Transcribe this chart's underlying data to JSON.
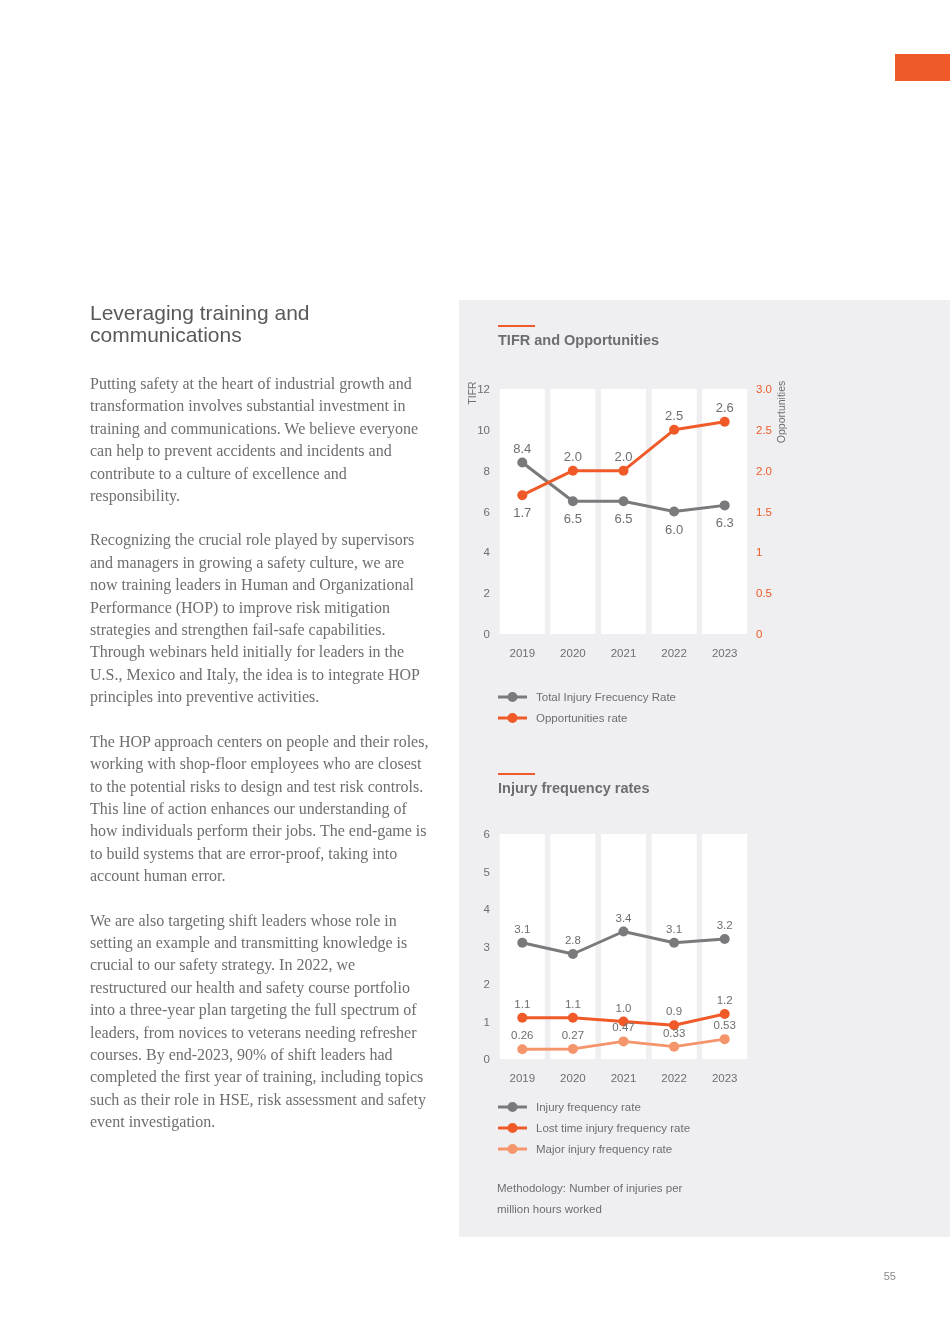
{
  "chart_data": [
    {
      "type": "other",
      "title": "Leveraging training and communications",
      "annotations": [
        "Putting safety at the heart of industrial growth and transformation involves substantial investment in training and communications. We believe everyone can help to prevent accidents and incidents and contribute to a culture of excellence and responsibility.",
        "Recognizing the crucial role played by supervisors and managers in growing a safety culture, we are now training leaders in Human and Organizational Performance (HOP) to improve risk mitigation strategies and strengthen fail-safe capabilities. Through webinars held initially for leaders in the U.S., Mexico and Italy, the idea is to integrate HOP principles into preventive activities.",
        "The HOP approach centers on people and their roles, working with shop-floor employees who are closest to the potential risks to design and test risk controls. This line of action enhances our understanding of how individuals perform their jobs. The end-game is to build systems that are error-proof, taking into account human error.",
        "We are also targeting shift leaders whose role in setting an example and transmitting knowledge is crucial to our safety strategy. In 2022, we restructured our health and safety course portfolio into a three-year plan targeting the full spectrum of leaders, from novices to veterans needing refresher courses. By end-2023, 90% of shift leaders had completed the first year of training, including topics such as their role in HSE, risk assessment and safety event investigation.",
        "55"
      ]
    },
    {
      "type": "line",
      "title": "TIFR and Opportunities",
      "categories": [
        "2019",
        "2020",
        "2021",
        "2022",
        "2023"
      ],
      "ylabel": "TIFR",
      "y2label": "Opportunities",
      "ylim": [
        0,
        12
      ],
      "yticks": [
        0,
        2,
        4,
        6,
        8,
        10,
        12
      ],
      "y2lim": [
        0,
        3
      ],
      "y2ticks": [
        0,
        {
          "value": 0.5,
          "label": "0.5"
        },
        1,
        {
          "value": 1.5,
          "label": "1.5"
        },
        {
          "value": 2,
          "label": "2.0"
        },
        {
          "value": 2.5,
          "label": "2.5"
        },
        {
          "value": 3,
          "label": "3.0"
        }
      ],
      "series": [
        {
          "name": "Total Injury Frecuency Rate",
          "color": "#7a7a7c",
          "values": [
            8.4,
            6.5,
            6.5,
            6.0,
            6.3
          ],
          "value_labels": [
            "8.4",
            "6.5",
            "6.5",
            "6.0",
            "6.3"
          ]
        },
        {
          "name": "Opportunities rate",
          "color": "#f05a28",
          "axis": "y2",
          "values": [
            1.7,
            2.0,
            2.0,
            2.5,
            2.6
          ],
          "value_labels": [
            "1.7",
            "2.0",
            "2.0",
            "2.5",
            "2.6"
          ]
        }
      ],
      "bands": [
        {
          "axis": "x",
          "from": "2019",
          "to": "2019",
          "color": "#ffffff"
        },
        {
          "axis": "x",
          "from": "2020",
          "to": "2020",
          "color": "#ffffff"
        },
        {
          "axis": "x",
          "from": "2021",
          "to": "2021",
          "color": "#ffffff"
        },
        {
          "axis": "x",
          "from": "2022",
          "to": "2022",
          "color": "#ffffff"
        },
        {
          "axis": "x",
          "from": "2023",
          "to": "2023",
          "color": "#ffffff"
        }
      ],
      "legend": "bottom",
      "marker": "circle"
    },
    {
      "type": "line",
      "title": "Injury frequency rates",
      "categories": [
        "2019",
        "2020",
        "2021",
        "2022",
        "2023"
      ],
      "ylim": [
        0,
        6
      ],
      "yticks": [
        0,
        1,
        2,
        3,
        4,
        5,
        6
      ],
      "series": [
        {
          "name": "Injury frequency rate",
          "color": "#7a7a7c",
          "values": [
            3.1,
            2.8,
            3.4,
            3.1,
            3.2
          ],
          "value_labels": [
            "3.1",
            "2.8",
            "3.4",
            "3.1",
            "3.2"
          ]
        },
        {
          "name": "Lost time injury frequency rate",
          "color": "#f05a28",
          "values": [
            1.1,
            1.1,
            1.0,
            0.9,
            1.2
          ],
          "value_labels": [
            "1.1",
            "1.1",
            "1.0",
            "0.9",
            "1.2"
          ]
        },
        {
          "name": "Major injury frequency rate",
          "color": "#f4956b",
          "values": [
            0.26,
            0.27,
            0.47,
            0.33,
            0.53
          ],
          "value_labels": [
            "0.26",
            "0.27",
            "0.47",
            "0.33",
            "0.53"
          ]
        }
      ],
      "annotations": [
        "Methodology: Number of injuries per million hours worked"
      ],
      "bands": [
        {
          "axis": "x",
          "from": "2019",
          "to": "2019",
          "color": "#ffffff"
        },
        {
          "axis": "x",
          "from": "2020",
          "to": "2020",
          "color": "#ffffff"
        },
        {
          "axis": "x",
          "from": "2021",
          "to": "2021",
          "color": "#ffffff"
        },
        {
          "axis": "x",
          "from": "2022",
          "to": "2022",
          "color": "#ffffff"
        },
        {
          "axis": "x",
          "from": "2023",
          "to": "2023",
          "color": "#ffffff"
        }
      ],
      "legend": "bottom",
      "marker": "circle"
    }
  ]
}
